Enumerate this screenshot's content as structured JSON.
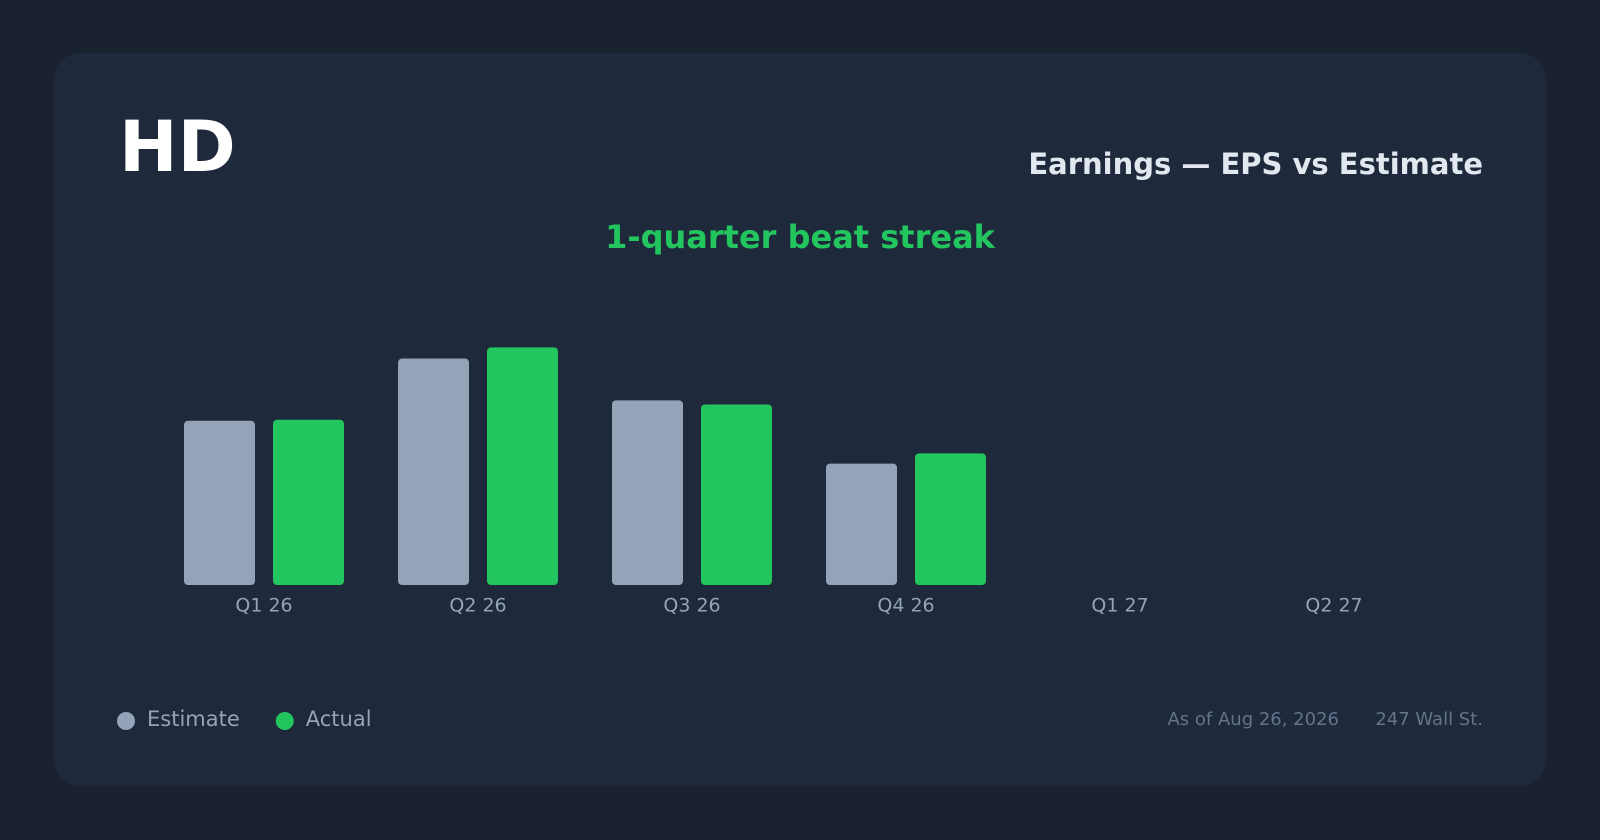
{
  "chart_data": {
    "type": "bar",
    "title": "HD",
    "subtitle": "Earnings — EPS vs Estimate",
    "annotation": "1-quarter beat streak",
    "categories": [
      "Q1 26",
      "Q2 26",
      "Q3 26",
      "Q4 26",
      "Q1 27",
      "Q2 27"
    ],
    "series": [
      {
        "name": "Estimate",
        "color": "#94a3b8",
        "values": [
          3.22,
          4.44,
          3.62,
          2.38,
          null,
          null
        ]
      },
      {
        "name": "Actual",
        "color": "#22c55e",
        "values": [
          3.24,
          4.66,
          3.54,
          2.58,
          null,
          null
        ]
      }
    ],
    "ylim": [
      0,
      5
    ],
    "grid": false,
    "legend": "bottom-left",
    "note": "As of Aug 26, 2026",
    "source": "247 Wall St."
  }
}
